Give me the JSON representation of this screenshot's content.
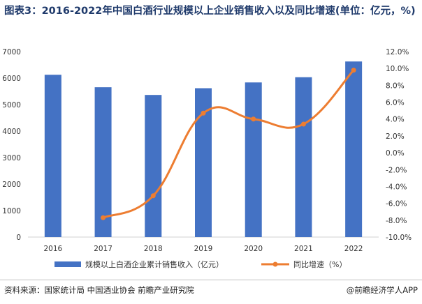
{
  "title": "图表3：2016-2022年中国白酒行业规模以上企业销售收入以及同比增速(单位：亿元，%)",
  "source": "资料来源：国家统计局 中国酒业协会 前瞻产业研究院",
  "brand": "@前瞻经济学人APP",
  "colors": {
    "bar": "#4472c4",
    "line": "#ed7d31",
    "title": "#1f3a6b"
  },
  "chart_data": {
    "type": "bar",
    "categories": [
      "2016",
      "2017",
      "2018",
      "2019",
      "2020",
      "2021",
      "2022"
    ],
    "series": [
      {
        "name": "规模以上白酒企业累计销售收入（亿元）",
        "type": "bar",
        "axis": "left",
        "values": [
          6126,
          5654,
          5364,
          5618,
          5836,
          6033,
          6627
        ]
      },
      {
        "name": "同比增速（%）",
        "type": "line",
        "axis": "right",
        "values": [
          null,
          -7.7,
          -5.1,
          4.7,
          4.0,
          3.4,
          9.8
        ]
      }
    ],
    "y_left": {
      "min": 0,
      "max": 7000,
      "ticks": [
        "0",
        "1000",
        "2000",
        "3000",
        "4000",
        "5000",
        "6000",
        "7000"
      ]
    },
    "y_right": {
      "min": -10,
      "max": 12,
      "ticks": [
        "-10.0%",
        "-8.0%",
        "-6.0%",
        "-4.0%",
        "-2.0%",
        "0.0%",
        "2.0%",
        "4.0%",
        "6.0%",
        "8.0%",
        "10.0%",
        "12.0%"
      ]
    },
    "legend_position": "bottom",
    "grid": false
  }
}
